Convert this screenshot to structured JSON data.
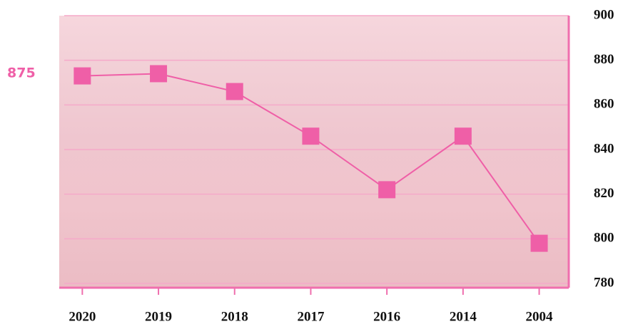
{
  "chart_data": {
    "type": "line",
    "annotation": "875",
    "categories": [
      "2020",
      "2019",
      "2018",
      "2017",
      "2016",
      "2014",
      "2004"
    ],
    "series": [
      {
        "color": "#ef5fa7",
        "values": [
          873,
          874,
          866,
          846,
          822,
          846,
          798
        ]
      }
    ],
    "ylim": [
      780,
      900
    ],
    "yticks": [
      780,
      800,
      820,
      840,
      860,
      880,
      900
    ],
    "grid": true,
    "y_axis_side": "right"
  }
}
